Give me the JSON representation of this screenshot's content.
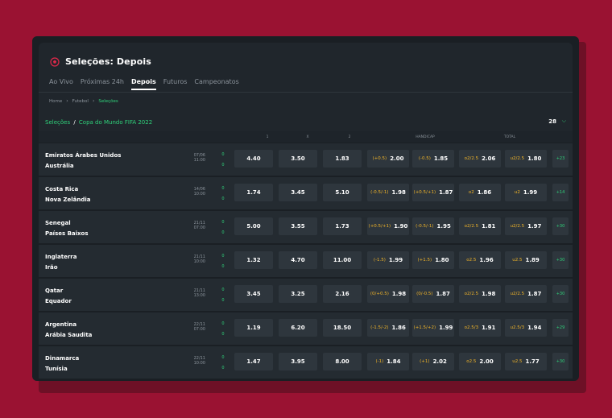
{
  "header": {
    "title": "Seleções: Depois",
    "icon": "soccer-ball-icon",
    "accent": "#2fd17a"
  },
  "tabs": [
    {
      "label": "Ao Vivo",
      "active": false
    },
    {
      "label": "Próximas 24h",
      "active": false
    },
    {
      "label": "Depois",
      "active": true
    },
    {
      "label": "Futuros",
      "active": false
    },
    {
      "label": "Campeonatos",
      "active": false
    }
  ],
  "breadcrumb": [
    "Home",
    "Futebol",
    "Seleções"
  ],
  "league": {
    "prefix": "Seleções",
    "separator": "/",
    "competition": "Copa do Mundo FIFA 2022",
    "count": "28"
  },
  "columns": {
    "c1": "1",
    "cx": "X",
    "c2": "2",
    "handicap": "HANDICAP",
    "total": "TOTAL"
  },
  "matches": [
    {
      "home": "Emiratos Árabes Unidos",
      "away": "Austrália",
      "date": "07/06",
      "time": "11:00",
      "score_home": "0",
      "score_away": "0",
      "o1": "4.40",
      "ox": "3.50",
      "o2": "1.83",
      "h1_line": "(+0.5)",
      "h1": "2.00",
      "h2_line": "(-0.5)",
      "h2": "1.85",
      "t1_line": "o2/2.5",
      "t1": "2.06",
      "t2_line": "u2/2.5",
      "t2": "1.80",
      "more": "+23"
    },
    {
      "home": "Costa Rica",
      "away": "Nova Zelândia",
      "date": "14/06",
      "time": "10:00",
      "score_home": "0",
      "score_away": "0",
      "o1": "1.74",
      "ox": "3.45",
      "o2": "5.10",
      "h1_line": "(-0.5/-1)",
      "h1": "1.98",
      "h2_line": "(+0.5/+1)",
      "h2": "1.87",
      "t1_line": "o2",
      "t1": "1.86",
      "t2_line": "u2",
      "t2": "1.99",
      "more": "+14"
    },
    {
      "home": "Senegal",
      "away": "Países Baixos",
      "date": "21/11",
      "time": "07:00",
      "score_home": "0",
      "score_away": "0",
      "o1": "5.00",
      "ox": "3.55",
      "o2": "1.73",
      "h1_line": "(+0.5/+1)",
      "h1": "1.90",
      "h2_line": "(-0.5/-1)",
      "h2": "1.95",
      "t1_line": "o2/2.5",
      "t1": "1.81",
      "t2_line": "u2/2.5",
      "t2": "1.97",
      "more": "+30"
    },
    {
      "home": "Inglaterra",
      "away": "Irão",
      "date": "21/11",
      "time": "10:00",
      "score_home": "0",
      "score_away": "0",
      "o1": "1.32",
      "ox": "4.70",
      "o2": "11.00",
      "h1_line": "(-1.5)",
      "h1": "1.99",
      "h2_line": "(+1.5)",
      "h2": "1.80",
      "t1_line": "o2.5",
      "t1": "1.96",
      "t2_line": "u2.5",
      "t2": "1.89",
      "more": "+30"
    },
    {
      "home": "Qatar",
      "away": "Equador",
      "date": "21/11",
      "time": "13:00",
      "score_home": "0",
      "score_away": "0",
      "o1": "3.45",
      "ox": "3.25",
      "o2": "2.16",
      "h1_line": "(0/+0.5)",
      "h1": "1.98",
      "h2_line": "(0/-0.5)",
      "h2": "1.87",
      "t1_line": "o2/2.5",
      "t1": "1.98",
      "t2_line": "u2/2.5",
      "t2": "1.87",
      "more": "+30"
    },
    {
      "home": "Argentina",
      "away": "Arábia Saudita",
      "date": "22/11",
      "time": "07:00",
      "score_home": "0",
      "score_away": "0",
      "o1": "1.19",
      "ox": "6.20",
      "o2": "18.50",
      "h1_line": "(-1.5/-2)",
      "h1": "1.86",
      "h2_line": "(+1.5/+2)",
      "h2": "1.99",
      "t1_line": "o2.5/3",
      "t1": "1.91",
      "t2_line": "u2.5/3",
      "t2": "1.94",
      "more": "+29"
    },
    {
      "home": "Dinamarca",
      "away": "Tunísia",
      "date": "22/11",
      "time": "10:00",
      "score_home": "0",
      "score_away": "0",
      "o1": "1.47",
      "ox": "3.95",
      "o2": "8.00",
      "h1_line": "(-1)",
      "h1": "1.84",
      "h2_line": "(+1)",
      "h2": "2.02",
      "t1_line": "o2.5",
      "t1": "2.00",
      "t2_line": "u2.5",
      "t2": "1.77",
      "more": "+30"
    }
  ]
}
